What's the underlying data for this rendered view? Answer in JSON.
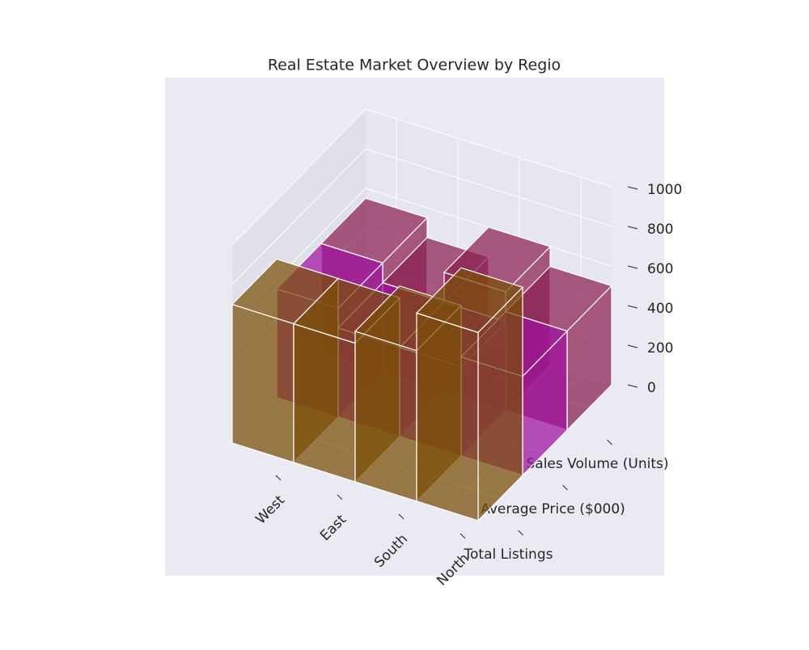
{
  "chart_data": {
    "type": "bar3d",
    "title": "Real Estate Market Overview by Regio",
    "categories": [
      "West",
      "East",
      "South",
      "North"
    ],
    "series": [
      {
        "name": "Total Listings",
        "color": "#7a4d05",
        "values": [
          700,
          700,
          760,
          950
        ]
      },
      {
        "name": "Average Price ($000)",
        "color": "#a010a0",
        "values": [
          550,
          450,
          450,
          500
        ]
      },
      {
        "name": "Sales Volume (Units)",
        "color": "#8a1f50",
        "values": [
          550,
          450,
          600,
          500
        ]
      }
    ],
    "zlim": [
      0,
      1000
    ],
    "zticks": [
      0,
      200,
      400,
      600,
      800,
      1000
    ],
    "grid": true
  }
}
